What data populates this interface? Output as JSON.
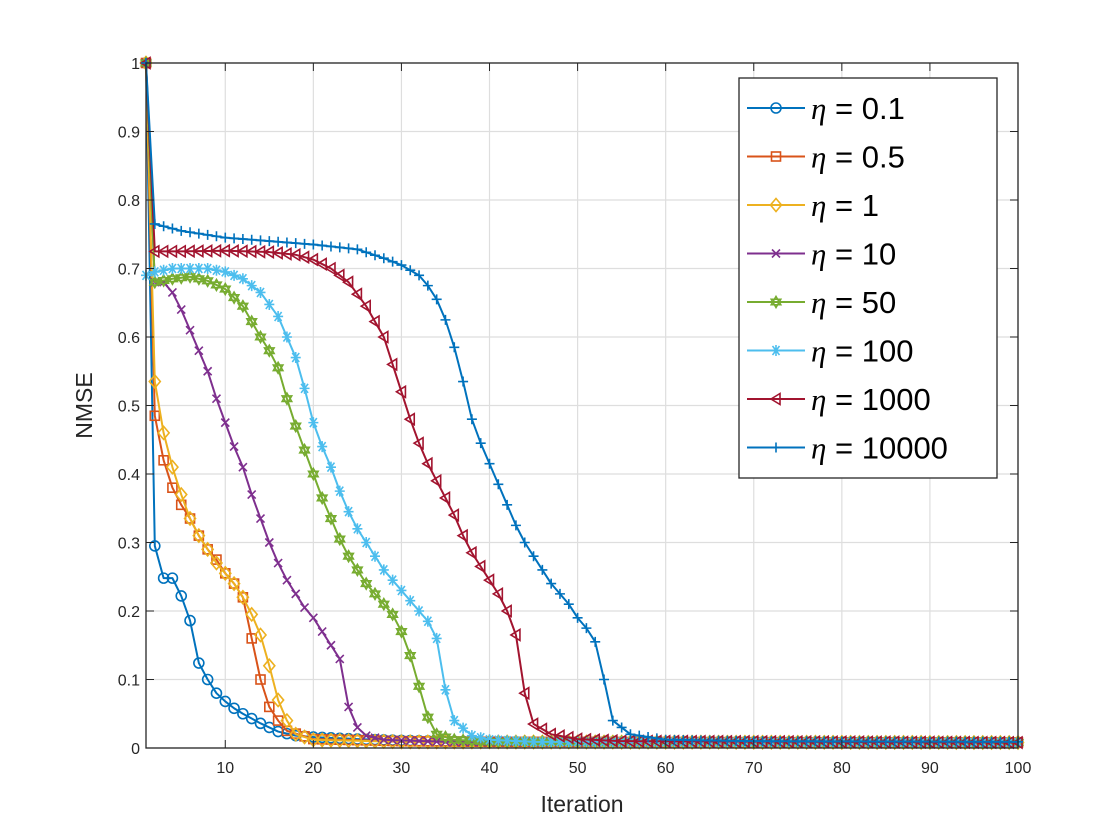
{
  "chart_data": {
    "type": "line",
    "title": "",
    "xlabel": "Iteration",
    "ylabel": "NMSE",
    "xlim": [
      1,
      100
    ],
    "ylim": [
      0,
      1
    ],
    "grid": true,
    "legend_position": "top-right",
    "xticks": [
      "10",
      "20",
      "30",
      "40",
      "50",
      "60",
      "70",
      "80",
      "90",
      "100"
    ],
    "yticks": [
      "0",
      "0.1",
      "0.2",
      "0.3",
      "0.4",
      "0.5",
      "0.6",
      "0.7",
      "0.8",
      "0.9",
      "1"
    ],
    "series": [
      {
        "name": "η = 0.1",
        "symbol": "η",
        "eq": " = 0.1",
        "color": "#0072BD",
        "marker": "circle",
        "keypoints": [
          [
            1,
            1.0
          ],
          [
            2,
            0.295
          ],
          [
            3,
            0.248
          ],
          [
            4,
            0.248
          ],
          [
            5,
            0.222
          ],
          [
            6,
            0.186
          ],
          [
            7,
            0.124
          ],
          [
            8,
            0.1
          ],
          [
            9,
            0.08
          ],
          [
            10,
            0.068
          ],
          [
            11,
            0.058
          ],
          [
            12,
            0.05
          ],
          [
            13,
            0.043
          ],
          [
            14,
            0.036
          ],
          [
            15,
            0.03
          ],
          [
            16,
            0.024
          ],
          [
            18,
            0.018
          ],
          [
            20,
            0.016
          ],
          [
            25,
            0.013
          ],
          [
            30,
            0.011
          ],
          [
            40,
            0.009
          ],
          [
            100,
            0.008
          ]
        ]
      },
      {
        "name": "η = 0.5",
        "symbol": "η",
        "eq": " = 0.5",
        "color": "#D95319",
        "marker": "square",
        "keypoints": [
          [
            1,
            1.0
          ],
          [
            2,
            0.485
          ],
          [
            3,
            0.42
          ],
          [
            4,
            0.38
          ],
          [
            5,
            0.355
          ],
          [
            6,
            0.335
          ],
          [
            7,
            0.31
          ],
          [
            8,
            0.29
          ],
          [
            9,
            0.275
          ],
          [
            10,
            0.255
          ],
          [
            11,
            0.24
          ],
          [
            12,
            0.22
          ],
          [
            13,
            0.16
          ],
          [
            14,
            0.1
          ],
          [
            15,
            0.06
          ],
          [
            16,
            0.04
          ],
          [
            17,
            0.025
          ],
          [
            20,
            0.013
          ],
          [
            30,
            0.01
          ],
          [
            40,
            0.009
          ],
          [
            100,
            0.008
          ]
        ]
      },
      {
        "name": "η = 1",
        "symbol": "η",
        "eq": " = 1",
        "color": "#EDB120",
        "marker": "diamond",
        "keypoints": [
          [
            1,
            1.0
          ],
          [
            2,
            0.535
          ],
          [
            3,
            0.46
          ],
          [
            4,
            0.41
          ],
          [
            5,
            0.37
          ],
          [
            6,
            0.335
          ],
          [
            7,
            0.31
          ],
          [
            8,
            0.29
          ],
          [
            9,
            0.27
          ],
          [
            10,
            0.255
          ],
          [
            11,
            0.24
          ],
          [
            12,
            0.22
          ],
          [
            13,
            0.195
          ],
          [
            14,
            0.165
          ],
          [
            15,
            0.12
          ],
          [
            16,
            0.07
          ],
          [
            17,
            0.04
          ],
          [
            18,
            0.02
          ],
          [
            20,
            0.012
          ],
          [
            30,
            0.009
          ],
          [
            100,
            0.008
          ]
        ]
      },
      {
        "name": "η = 10",
        "symbol": "η",
        "eq": " = 10",
        "color": "#7E2F8E",
        "marker": "x",
        "keypoints": [
          [
            1,
            1.0
          ],
          [
            2,
            0.68
          ],
          [
            3,
            0.68
          ],
          [
            4,
            0.665
          ],
          [
            5,
            0.64
          ],
          [
            6,
            0.61
          ],
          [
            7,
            0.58
          ],
          [
            8,
            0.55
          ],
          [
            9,
            0.51
          ],
          [
            10,
            0.475
          ],
          [
            11,
            0.44
          ],
          [
            12,
            0.41
          ],
          [
            13,
            0.37
          ],
          [
            14,
            0.335
          ],
          [
            15,
            0.3
          ],
          [
            16,
            0.27
          ],
          [
            17,
            0.245
          ],
          [
            18,
            0.225
          ],
          [
            19,
            0.205
          ],
          [
            20,
            0.19
          ],
          [
            21,
            0.17
          ],
          [
            22,
            0.15
          ],
          [
            23,
            0.13
          ],
          [
            24,
            0.06
          ],
          [
            25,
            0.03
          ],
          [
            26,
            0.018
          ],
          [
            28,
            0.012
          ],
          [
            35,
            0.009
          ],
          [
            100,
            0.008
          ]
        ]
      },
      {
        "name": "η = 50",
        "symbol": "η",
        "eq": " = 50",
        "color": "#77AC30",
        "marker": "hexagram",
        "keypoints": [
          [
            1,
            1.0
          ],
          [
            2,
            0.68
          ],
          [
            4,
            0.685
          ],
          [
            6,
            0.688
          ],
          [
            8,
            0.682
          ],
          [
            10,
            0.67
          ],
          [
            12,
            0.645
          ],
          [
            14,
            0.6
          ],
          [
            15,
            0.58
          ],
          [
            16,
            0.555
          ],
          [
            17,
            0.51
          ],
          [
            18,
            0.47
          ],
          [
            19,
            0.435
          ],
          [
            20,
            0.4
          ],
          [
            21,
            0.365
          ],
          [
            22,
            0.335
          ],
          [
            23,
            0.305
          ],
          [
            24,
            0.28
          ],
          [
            25,
            0.26
          ],
          [
            26,
            0.24
          ],
          [
            27,
            0.225
          ],
          [
            28,
            0.21
          ],
          [
            29,
            0.195
          ],
          [
            30,
            0.17
          ],
          [
            31,
            0.135
          ],
          [
            32,
            0.09
          ],
          [
            33,
            0.045
          ],
          [
            34,
            0.02
          ],
          [
            36,
            0.012
          ],
          [
            40,
            0.009
          ],
          [
            100,
            0.008
          ]
        ]
      },
      {
        "name": "η = 100",
        "symbol": "η",
        "eq": " = 100",
        "color": "#4DBEEE",
        "marker": "asterisk",
        "keypoints": [
          [
            1,
            0.69
          ],
          [
            2,
            0.695
          ],
          [
            4,
            0.7
          ],
          [
            6,
            0.7
          ],
          [
            8,
            0.7
          ],
          [
            10,
            0.695
          ],
          [
            12,
            0.685
          ],
          [
            14,
            0.665
          ],
          [
            16,
            0.63
          ],
          [
            17,
            0.6
          ],
          [
            18,
            0.57
          ],
          [
            19,
            0.525
          ],
          [
            20,
            0.475
          ],
          [
            21,
            0.44
          ],
          [
            22,
            0.41
          ],
          [
            23,
            0.375
          ],
          [
            24,
            0.345
          ],
          [
            25,
            0.32
          ],
          [
            26,
            0.3
          ],
          [
            27,
            0.28
          ],
          [
            28,
            0.26
          ],
          [
            29,
            0.245
          ],
          [
            30,
            0.23
          ],
          [
            31,
            0.215
          ],
          [
            32,
            0.2
          ],
          [
            33,
            0.185
          ],
          [
            34,
            0.16
          ],
          [
            35,
            0.085
          ],
          [
            36,
            0.04
          ],
          [
            38,
            0.018
          ],
          [
            40,
            0.012
          ],
          [
            45,
            0.009
          ],
          [
            100,
            0.008
          ]
        ]
      },
      {
        "name": "η = 1000",
        "symbol": "η",
        "eq": " = 1000",
        "color": "#A2142F",
        "marker": "triangle-left",
        "keypoints": [
          [
            1,
            1.0
          ],
          [
            2,
            0.725
          ],
          [
            5,
            0.725
          ],
          [
            10,
            0.726
          ],
          [
            15,
            0.724
          ],
          [
            18,
            0.72
          ],
          [
            20,
            0.713
          ],
          [
            22,
            0.7
          ],
          [
            24,
            0.68
          ],
          [
            26,
            0.645
          ],
          [
            28,
            0.6
          ],
          [
            29,
            0.56
          ],
          [
            30,
            0.52
          ],
          [
            31,
            0.48
          ],
          [
            32,
            0.445
          ],
          [
            33,
            0.415
          ],
          [
            34,
            0.39
          ],
          [
            35,
            0.365
          ],
          [
            36,
            0.34
          ],
          [
            37,
            0.31
          ],
          [
            38,
            0.285
          ],
          [
            39,
            0.265
          ],
          [
            40,
            0.245
          ],
          [
            41,
            0.225
          ],
          [
            42,
            0.2
          ],
          [
            43,
            0.165
          ],
          [
            44,
            0.08
          ],
          [
            45,
            0.035
          ],
          [
            47,
            0.02
          ],
          [
            50,
            0.013
          ],
          [
            55,
            0.01
          ],
          [
            100,
            0.008
          ]
        ]
      },
      {
        "name": "η = 10000",
        "symbol": "η",
        "eq": " = 10000",
        "color": "#0072BD",
        "marker": "plus",
        "keypoints": [
          [
            1,
            1.0
          ],
          [
            2,
            0.765
          ],
          [
            5,
            0.755
          ],
          [
            10,
            0.745
          ],
          [
            15,
            0.74
          ],
          [
            20,
            0.735
          ],
          [
            25,
            0.728
          ],
          [
            28,
            0.715
          ],
          [
            30,
            0.705
          ],
          [
            32,
            0.69
          ],
          [
            33,
            0.675
          ],
          [
            34,
            0.655
          ],
          [
            35,
            0.625
          ],
          [
            36,
            0.585
          ],
          [
            37,
            0.535
          ],
          [
            38,
            0.48
          ],
          [
            39,
            0.445
          ],
          [
            40,
            0.415
          ],
          [
            41,
            0.385
          ],
          [
            42,
            0.355
          ],
          [
            43,
            0.325
          ],
          [
            44,
            0.3
          ],
          [
            45,
            0.28
          ],
          [
            46,
            0.26
          ],
          [
            47,
            0.24
          ],
          [
            48,
            0.225
          ],
          [
            49,
            0.21
          ],
          [
            50,
            0.19
          ],
          [
            51,
            0.175
          ],
          [
            52,
            0.155
          ],
          [
            53,
            0.1
          ],
          [
            54,
            0.04
          ],
          [
            56,
            0.02
          ],
          [
            60,
            0.012
          ],
          [
            70,
            0.01
          ],
          [
            100,
            0.009
          ]
        ]
      }
    ]
  }
}
